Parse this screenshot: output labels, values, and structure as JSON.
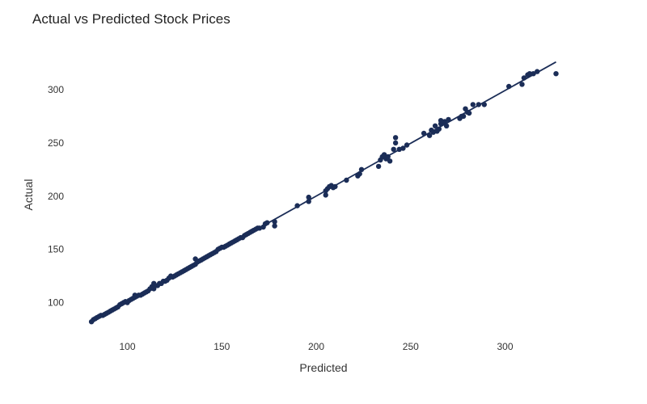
{
  "chart_data": {
    "type": "scatter",
    "title": "Actual vs Predicted Stock Prices",
    "xlabel": "Predicted",
    "ylabel": "Actual",
    "xlim": [
      78,
      332
    ],
    "ylim": [
      68,
      340
    ],
    "xticks": [
      100,
      150,
      200,
      250,
      300
    ],
    "yticks": [
      100,
      150,
      200,
      250,
      300
    ],
    "grid": false,
    "colors": {
      "points": "#1b2d57",
      "line": "#1b2d57"
    },
    "series": [
      {
        "type": "scatter",
        "points": [
          [
            81,
            82
          ],
          [
            82,
            84
          ],
          [
            83,
            85
          ],
          [
            84,
            86
          ],
          [
            85,
            87
          ],
          [
            86,
            88
          ],
          [
            87,
            88
          ],
          [
            88,
            89
          ],
          [
            89,
            90
          ],
          [
            90,
            91
          ],
          [
            91,
            92
          ],
          [
            92,
            93
          ],
          [
            93,
            94
          ],
          [
            94,
            95
          ],
          [
            95,
            96
          ],
          [
            96,
            98
          ],
          [
            97,
            99
          ],
          [
            98,
            100
          ],
          [
            99,
            101
          ],
          [
            100,
            100
          ],
          [
            101,
            102
          ],
          [
            102,
            103
          ],
          [
            103,
            104
          ],
          [
            104,
            105
          ],
          [
            104,
            107
          ],
          [
            105,
            106
          ],
          [
            106,
            107
          ],
          [
            107,
            107
          ],
          [
            108,
            108
          ],
          [
            109,
            109
          ],
          [
            110,
            110
          ],
          [
            111,
            111
          ],
          [
            112,
            113
          ],
          [
            113,
            115
          ],
          [
            114,
            113
          ],
          [
            114,
            118
          ],
          [
            115,
            116
          ],
          [
            116,
            116
          ],
          [
            117,
            118
          ],
          [
            118,
            118
          ],
          [
            119,
            120
          ],
          [
            120,
            120
          ],
          [
            121,
            121
          ],
          [
            122,
            123
          ],
          [
            123,
            125
          ],
          [
            124,
            124
          ],
          [
            125,
            125
          ],
          [
            126,
            126
          ],
          [
            127,
            127
          ],
          [
            128,
            128
          ],
          [
            129,
            129
          ],
          [
            130,
            130
          ],
          [
            131,
            131
          ],
          [
            132,
            132
          ],
          [
            133,
            133
          ],
          [
            134,
            134
          ],
          [
            135,
            135
          ],
          [
            136,
            136
          ],
          [
            136,
            141
          ],
          [
            137,
            138
          ],
          [
            138,
            139
          ],
          [
            139,
            140
          ],
          [
            140,
            141
          ],
          [
            141,
            142
          ],
          [
            142,
            143
          ],
          [
            143,
            144
          ],
          [
            144,
            145
          ],
          [
            145,
            146
          ],
          [
            146,
            147
          ],
          [
            147,
            148
          ],
          [
            148,
            150
          ],
          [
            149,
            151
          ],
          [
            150,
            152
          ],
          [
            151,
            152
          ],
          [
            152,
            153
          ],
          [
            153,
            154
          ],
          [
            154,
            155
          ],
          [
            155,
            156
          ],
          [
            156,
            157
          ],
          [
            157,
            158
          ],
          [
            158,
            159
          ],
          [
            159,
            160
          ],
          [
            160,
            161
          ],
          [
            161,
            161
          ],
          [
            162,
            163
          ],
          [
            163,
            164
          ],
          [
            164,
            165
          ],
          [
            165,
            166
          ],
          [
            166,
            167
          ],
          [
            167,
            168
          ],
          [
            168,
            169
          ],
          [
            169,
            170
          ],
          [
            170,
            170
          ],
          [
            172,
            171
          ],
          [
            173,
            174
          ],
          [
            174,
            175
          ],
          [
            178,
            172
          ],
          [
            178,
            176
          ],
          [
            190,
            191
          ],
          [
            196,
            195
          ],
          [
            196,
            199
          ],
          [
            205,
            201
          ],
          [
            205,
            205
          ],
          [
            206,
            207
          ],
          [
            207,
            209
          ],
          [
            208,
            210
          ],
          [
            209,
            208
          ],
          [
            210,
            209
          ],
          [
            216,
            215
          ],
          [
            222,
            219
          ],
          [
            223,
            221
          ],
          [
            224,
            225
          ],
          [
            233,
            228
          ],
          [
            234,
            234
          ],
          [
            235,
            237
          ],
          [
            236,
            239
          ],
          [
            237,
            235
          ],
          [
            238,
            237
          ],
          [
            239,
            233
          ],
          [
            241,
            244
          ],
          [
            242,
            250
          ],
          [
            242,
            255
          ],
          [
            244,
            244
          ],
          [
            246,
            245
          ],
          [
            248,
            248
          ],
          [
            257,
            259
          ],
          [
            260,
            257
          ],
          [
            261,
            262
          ],
          [
            262,
            260
          ],
          [
            263,
            266
          ],
          [
            264,
            261
          ],
          [
            265,
            263
          ],
          [
            266,
            268
          ],
          [
            266,
            271
          ],
          [
            267,
            269
          ],
          [
            268,
            270
          ],
          [
            269,
            266
          ],
          [
            270,
            272
          ],
          [
            276,
            273
          ],
          [
            277,
            275
          ],
          [
            278,
            275
          ],
          [
            279,
            282
          ],
          [
            280,
            279
          ],
          [
            281,
            278
          ],
          [
            283,
            286
          ],
          [
            286,
            286
          ],
          [
            289,
            286
          ],
          [
            302,
            303
          ],
          [
            309,
            305
          ],
          [
            310,
            311
          ],
          [
            312,
            314
          ],
          [
            313,
            315
          ],
          [
            315,
            315
          ],
          [
            317,
            317
          ],
          [
            327,
            315
          ]
        ]
      },
      {
        "type": "line",
        "points": [
          [
            81,
            82
          ],
          [
            327,
            326
          ]
        ]
      }
    ]
  }
}
